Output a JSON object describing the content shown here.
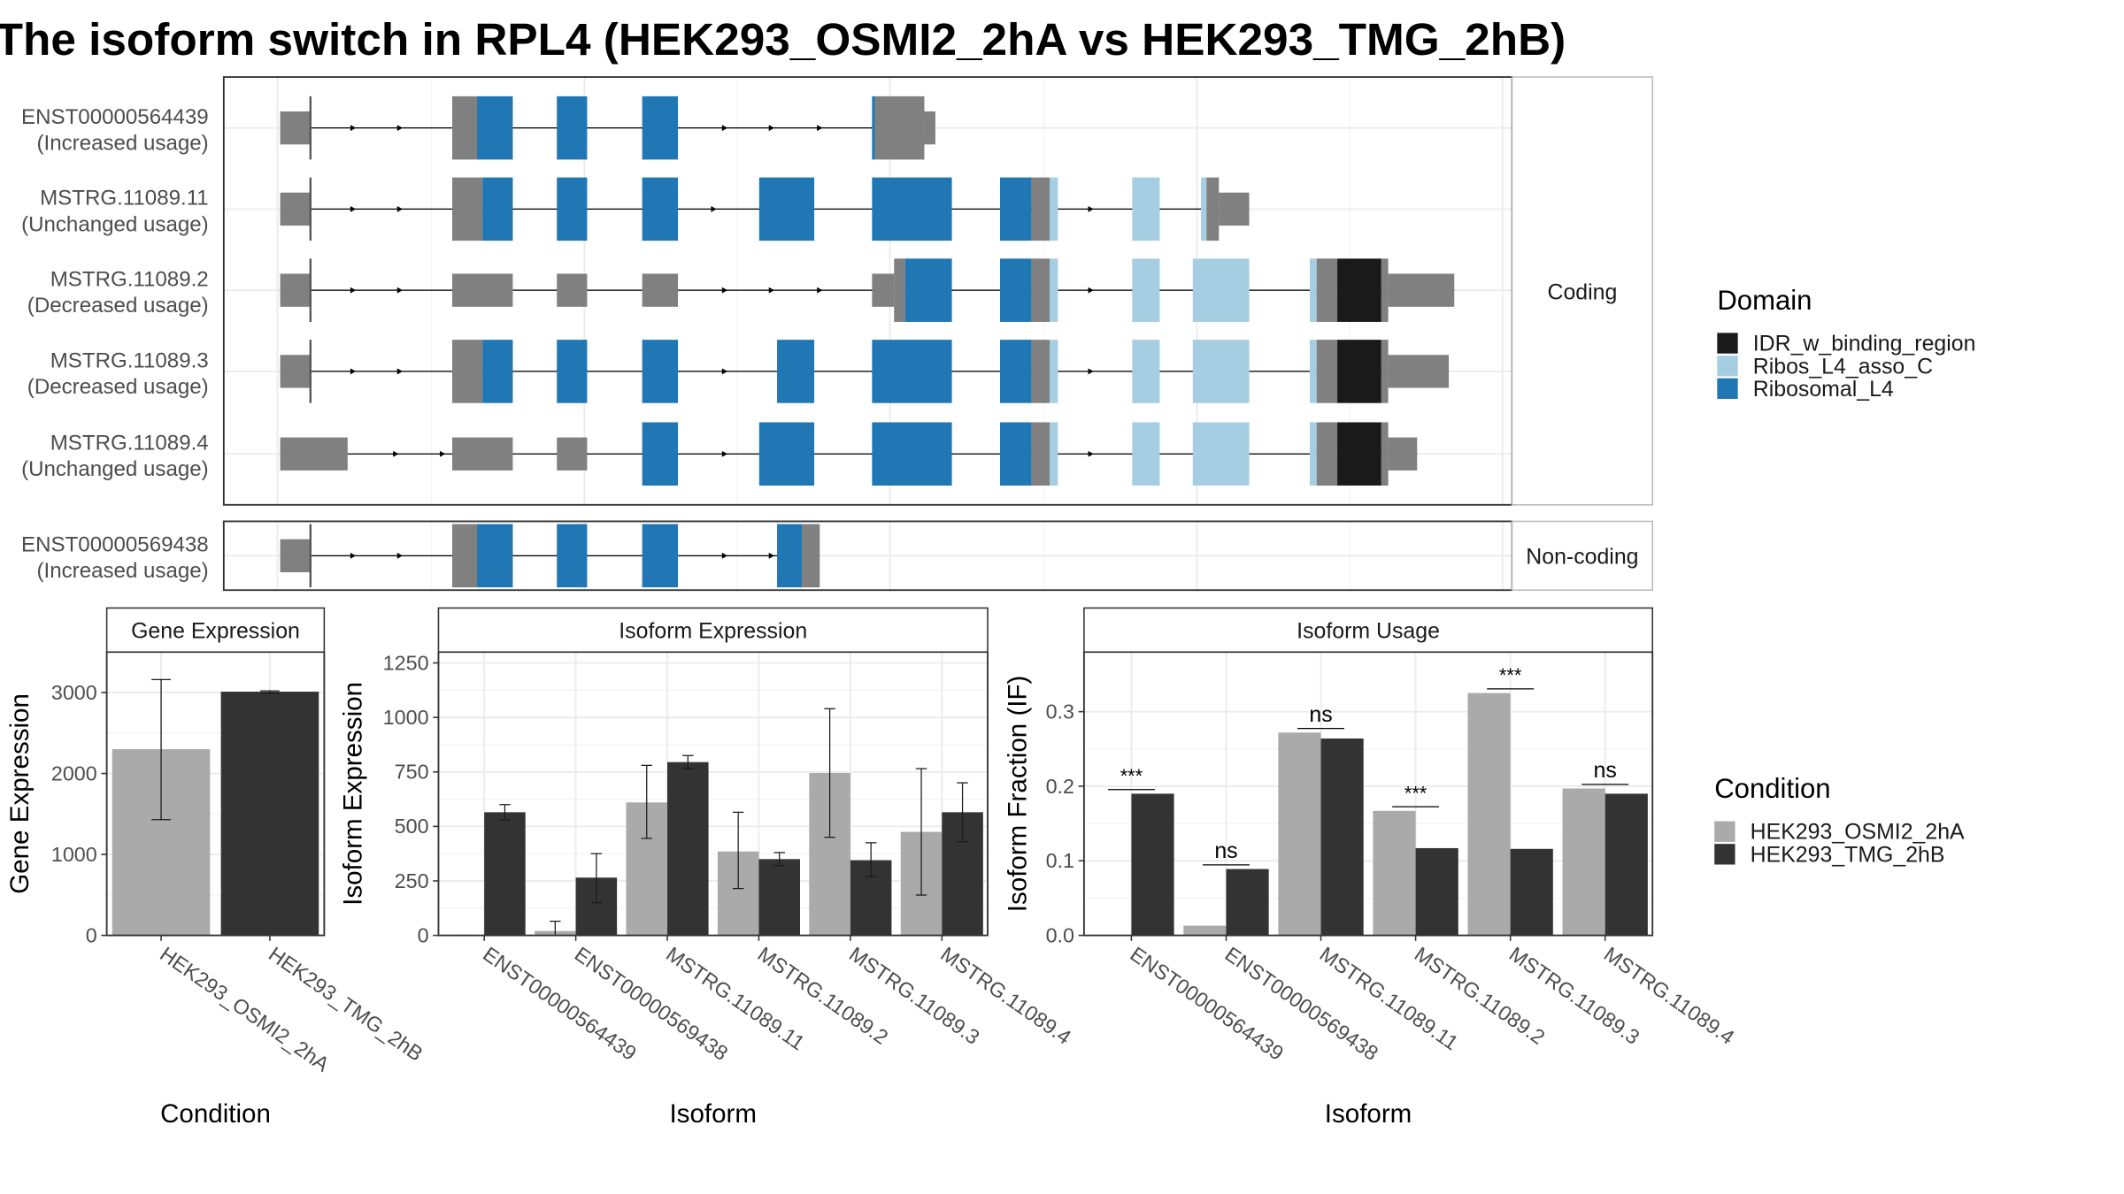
{
  "title": "The isoform switch in RPL4 (HEK293_OSMI2_2hA vs HEK293_TMG_2hB)",
  "colors": {
    "utr": "#808080",
    "ribosomal_l4": "#2077b4",
    "ribos_l4_asso_c": "#a6cee3",
    "idr": "#1a1a1a",
    "cond_a": "#aaaaaa",
    "cond_b": "#333333",
    "panel_border": "#333333",
    "strip_fill": "#ffffff",
    "grid": "#ebebeb"
  },
  "structure": {
    "coding_label": "Coding",
    "noncoding_label": "Non-coding",
    "coding": [
      {
        "name": "ENST00000564439",
        "status": "(Increased usage)",
        "exons": [
          {
            "s": 203,
            "e": 225,
            "d": "utr",
            "h": "s"
          },
          {
            "s": 328,
            "e": 346,
            "d": "utr"
          },
          {
            "s": 346,
            "e": 372,
            "d": "ribosomal_l4"
          },
          {
            "s": 404,
            "e": 426,
            "d": "ribosomal_l4"
          },
          {
            "s": 466,
            "e": 492,
            "d": "ribosomal_l4"
          },
          {
            "s": 633,
            "e": 635,
            "d": "ribosomal_l4"
          },
          {
            "s": 635,
            "e": 671,
            "d": "utr"
          },
          {
            "s": 671,
            "e": 679,
            "d": "utr",
            "h": "s"
          }
        ],
        "arrows": [
          258,
          292,
          528,
          562,
          597
        ]
      },
      {
        "name": "MSTRG.11089.11",
        "status": "(Unchanged usage)",
        "exons": [
          {
            "s": 203,
            "e": 225,
            "d": "utr",
            "h": "s"
          },
          {
            "s": 328,
            "e": 350,
            "d": "utr"
          },
          {
            "s": 350,
            "e": 372,
            "d": "ribosomal_l4"
          },
          {
            "s": 404,
            "e": 426,
            "d": "ribosomal_l4"
          },
          {
            "s": 466,
            "e": 492,
            "d": "ribosomal_l4"
          },
          {
            "s": 551,
            "e": 591,
            "d": "ribosomal_l4"
          },
          {
            "s": 633,
            "e": 691,
            "d": "ribosomal_l4"
          },
          {
            "s": 726,
            "e": 749,
            "d": "ribosomal_l4"
          },
          {
            "s": 749,
            "e": 762,
            "d": "utr"
          },
          {
            "s": 762,
            "e": 768,
            "d": "ribos_l4_asso_c"
          },
          {
            "s": 822,
            "e": 842,
            "d": "ribos_l4_asso_c"
          },
          {
            "s": 872,
            "e": 876,
            "d": "ribos_l4_asso_c"
          },
          {
            "s": 876,
            "e": 885,
            "d": "utr"
          },
          {
            "s": 885,
            "e": 907,
            "d": "utr",
            "h": "s"
          }
        ],
        "arrows": [
          258,
          292,
          520,
          794
        ]
      },
      {
        "name": "MSTRG.11089.2",
        "status": "(Decreased usage)",
        "exons": [
          {
            "s": 203,
            "e": 225,
            "d": "utr",
            "h": "s"
          },
          {
            "s": 328,
            "e": 372,
            "d": "utr",
            "h": "s"
          },
          {
            "s": 404,
            "e": 426,
            "d": "utr",
            "h": "s"
          },
          {
            "s": 466,
            "e": 492,
            "d": "utr",
            "h": "s"
          },
          {
            "s": 633,
            "e": 649,
            "d": "utr",
            "h": "s"
          },
          {
            "s": 649,
            "e": 657,
            "d": "utr"
          },
          {
            "s": 657,
            "e": 691,
            "d": "ribosomal_l4"
          },
          {
            "s": 726,
            "e": 749,
            "d": "ribosomal_l4"
          },
          {
            "s": 749,
            "e": 762,
            "d": "utr"
          },
          {
            "s": 762,
            "e": 768,
            "d": "ribos_l4_asso_c"
          },
          {
            "s": 822,
            "e": 842,
            "d": "ribos_l4_asso_c"
          },
          {
            "s": 866,
            "e": 907,
            "d": "ribos_l4_asso_c"
          },
          {
            "s": 951,
            "e": 956,
            "d": "ribos_l4_asso_c"
          },
          {
            "s": 956,
            "e": 971,
            "d": "utr"
          },
          {
            "s": 971,
            "e": 1003,
            "d": "idr"
          },
          {
            "s": 1003,
            "e": 1008,
            "d": "utr"
          },
          {
            "s": 1008,
            "e": 1056,
            "d": "utr",
            "h": "s"
          }
        ],
        "arrows": [
          258,
          292,
          528,
          562,
          597,
          794
        ]
      },
      {
        "name": "MSTRG.11089.3",
        "status": "(Decreased usage)",
        "exons": [
          {
            "s": 203,
            "e": 225,
            "d": "utr",
            "h": "s"
          },
          {
            "s": 328,
            "e": 350,
            "d": "utr"
          },
          {
            "s": 350,
            "e": 372,
            "d": "ribosomal_l4"
          },
          {
            "s": 404,
            "e": 426,
            "d": "ribosomal_l4"
          },
          {
            "s": 466,
            "e": 492,
            "d": "ribosomal_l4"
          },
          {
            "s": 564,
            "e": 591,
            "d": "ribosomal_l4"
          },
          {
            "s": 633,
            "e": 691,
            "d": "ribosomal_l4"
          },
          {
            "s": 726,
            "e": 749,
            "d": "ribosomal_l4"
          },
          {
            "s": 749,
            "e": 762,
            "d": "utr"
          },
          {
            "s": 762,
            "e": 768,
            "d": "ribos_l4_asso_c"
          },
          {
            "s": 822,
            "e": 842,
            "d": "ribos_l4_asso_c"
          },
          {
            "s": 866,
            "e": 907,
            "d": "ribos_l4_asso_c"
          },
          {
            "s": 951,
            "e": 956,
            "d": "ribos_l4_asso_c"
          },
          {
            "s": 956,
            "e": 971,
            "d": "utr"
          },
          {
            "s": 971,
            "e": 1003,
            "d": "idr"
          },
          {
            "s": 1003,
            "e": 1008,
            "d": "utr"
          },
          {
            "s": 1008,
            "e": 1052,
            "d": "utr",
            "h": "s"
          }
        ],
        "arrows": [
          258,
          292,
          528,
          794
        ]
      },
      {
        "name": "MSTRG.11089.4",
        "status": "(Unchanged usage)",
        "exons": [
          {
            "s": 203,
            "e": 252,
            "d": "utr",
            "h": "s"
          },
          {
            "s": 328,
            "e": 372,
            "d": "utr",
            "h": "s"
          },
          {
            "s": 404,
            "e": 426,
            "d": "utr",
            "h": "s"
          },
          {
            "s": 466,
            "e": 492,
            "d": "ribosomal_l4"
          },
          {
            "s": 551,
            "e": 591,
            "d": "ribosomal_l4"
          },
          {
            "s": 633,
            "e": 691,
            "d": "ribosomal_l4"
          },
          {
            "s": 726,
            "e": 749,
            "d": "ribosomal_l4"
          },
          {
            "s": 749,
            "e": 762,
            "d": "utr"
          },
          {
            "s": 762,
            "e": 768,
            "d": "ribos_l4_asso_c"
          },
          {
            "s": 822,
            "e": 842,
            "d": "ribos_l4_asso_c"
          },
          {
            "s": 866,
            "e": 907,
            "d": "ribos_l4_asso_c"
          },
          {
            "s": 951,
            "e": 956,
            "d": "ribos_l4_asso_c"
          },
          {
            "s": 956,
            "e": 971,
            "d": "utr"
          },
          {
            "s": 971,
            "e": 1003,
            "d": "idr"
          },
          {
            "s": 1003,
            "e": 1008,
            "d": "utr"
          },
          {
            "s": 1008,
            "e": 1029,
            "d": "utr",
            "h": "s"
          }
        ],
        "arrows": [
          289,
          323,
          528,
          794
        ]
      }
    ],
    "noncoding": [
      {
        "name": "ENST00000569438",
        "status": "(Increased usage)",
        "exons": [
          {
            "s": 203,
            "e": 225,
            "d": "utr",
            "h": "s"
          },
          {
            "s": 328,
            "e": 346,
            "d": "utr"
          },
          {
            "s": 346,
            "e": 372,
            "d": "ribosomal_l4"
          },
          {
            "s": 404,
            "e": 426,
            "d": "ribosomal_l4"
          },
          {
            "s": 466,
            "e": 492,
            "d": "ribosomal_l4"
          },
          {
            "s": 564,
            "e": 582,
            "d": "ribosomal_l4"
          },
          {
            "s": 582,
            "e": 595,
            "d": "utr"
          }
        ],
        "arrows": [
          258,
          292,
          528,
          562
        ]
      }
    ]
  },
  "legend_domain": {
    "title": "Domain",
    "items": [
      {
        "label": "IDR_w_binding_region",
        "color": "#1a1a1a"
      },
      {
        "label": "Ribos_L4_asso_C",
        "color": "#a6cee3"
      },
      {
        "label": "Ribosomal_L4",
        "color": "#2077b4"
      }
    ]
  },
  "legend_condition": {
    "title": "Condition",
    "items": [
      {
        "label": "HEK293_OSMI2_2hA",
        "color": "#aaaaaa"
      },
      {
        "label": "HEK293_TMG_2hB",
        "color": "#333333"
      }
    ]
  },
  "chart_data": [
    {
      "type": "bar",
      "title": "Gene Expression",
      "xlabel": "Condition",
      "ylabel": "Gene Expression",
      "categories": [
        "HEK293_OSMI2_2hA",
        "HEK293_TMG_2hB"
      ],
      "values": [
        2300,
        3010
      ],
      "errors": [
        [
          1430,
          3160
        ],
        [
          2990,
          3020
        ]
      ],
      "ylim": [
        0,
        3500
      ],
      "yticks": [
        0,
        1000,
        2000,
        3000
      ]
    },
    {
      "type": "bar",
      "title": "Isoform Expression",
      "xlabel": "Isoform",
      "ylabel": "Isoform Expression",
      "categories": [
        "ENST00000564439",
        "ENST00000569438",
        "MSTRG.11089.11",
        "MSTRG.11089.2",
        "MSTRG.11089.3",
        "MSTRG.11089.4"
      ],
      "series": [
        {
          "name": "HEK293_OSMI2_2hA",
          "values": [
            0,
            20,
            610,
            385,
            745,
            475
          ],
          "errors": [
            [
              0,
              0
            ],
            [
              0,
              65
            ],
            [
              445,
              780
            ],
            [
              215,
              565
            ],
            [
              450,
              1040
            ],
            [
              185,
              765
            ]
          ]
        },
        {
          "name": "HEK293_TMG_2hB",
          "values": [
            565,
            265,
            795,
            350,
            345,
            565
          ],
          "errors": [
            [
              530,
              600
            ],
            [
              150,
              375
            ],
            [
              765,
              825
            ],
            [
              320,
              380
            ],
            [
              270,
              425
            ],
            [
              430,
              700
            ]
          ]
        }
      ],
      "ylim": [
        0,
        1300
      ],
      "yticks": [
        0,
        250,
        500,
        750,
        1000,
        1250
      ]
    },
    {
      "type": "bar",
      "title": "Isoform Usage",
      "xlabel": "Isoform",
      "ylabel": "Isoform Fraction (IF)",
      "categories": [
        "ENST00000564439",
        "ENST00000569438",
        "MSTRG.11089.11",
        "MSTRG.11089.2",
        "MSTRG.11089.3",
        "MSTRG.11089.4"
      ],
      "series": [
        {
          "name": "HEK293_OSMI2_2hA",
          "values": [
            0.0,
            0.013,
            0.272,
            0.167,
            0.325,
            0.197
          ]
        },
        {
          "name": "HEK293_TMG_2hB",
          "values": [
            0.19,
            0.089,
            0.264,
            0.117,
            0.116,
            0.19
          ]
        }
      ],
      "significance": [
        "***",
        "ns",
        "ns",
        "***",
        "***",
        "ns"
      ],
      "ylim": [
        0,
        0.38
      ],
      "yticks": [
        0.0,
        0.1,
        0.2,
        0.3
      ],
      "ytick_labels": [
        "0.0",
        "0.1",
        "0.2",
        "0.3"
      ]
    }
  ]
}
